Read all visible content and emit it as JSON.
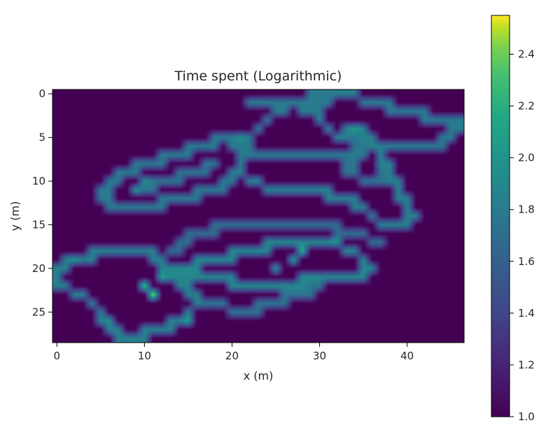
{
  "chart_data": {
    "type": "heatmap",
    "title": "Time spent (Logarithmic)",
    "xlabel": "x (m)",
    "ylabel": "y (m)",
    "xlim": [
      -0.5,
      46.5
    ],
    "ylim": [
      28.5,
      -0.5
    ],
    "grid": false,
    "colormap": "viridis",
    "colorbar": {
      "vmin": 1.0,
      "vmax": 2.55,
      "ticks": [
        1.0,
        1.2,
        1.4,
        1.6,
        1.8,
        2.0,
        2.2,
        2.4
      ],
      "tick_labels": [
        "1.0",
        "1.2",
        "1.4",
        "1.6",
        "1.8",
        "2.0",
        "2.2",
        "2.4"
      ]
    },
    "x_ticks": [
      0,
      10,
      20,
      30,
      40
    ],
    "x_tick_labels": [
      "0",
      "10",
      "20",
      "30",
      "40"
    ],
    "y_ticks": [
      0,
      5,
      10,
      15,
      20,
      25
    ],
    "y_tick_labels": [
      "0",
      "5",
      "10",
      "15",
      "20",
      "25"
    ],
    "background_value": 1.0,
    "paths": [
      {
        "value": 1.85,
        "points": [
          [
            5,
            18
          ],
          [
            2,
            19
          ],
          [
            0,
            20
          ],
          [
            0,
            22
          ],
          [
            3,
            23
          ],
          [
            5,
            25
          ],
          [
            6,
            27
          ],
          [
            8,
            28
          ],
          [
            11,
            27
          ],
          [
            14,
            26
          ],
          [
            16,
            24
          ],
          [
            15,
            22
          ],
          [
            13,
            21
          ],
          [
            12,
            19
          ],
          [
            10,
            18
          ],
          [
            7,
            18
          ],
          [
            5,
            18
          ]
        ]
      },
      {
        "value": 1.9,
        "points": [
          [
            12,
            21
          ],
          [
            14,
            20
          ],
          [
            18,
            19
          ],
          [
            22,
            18
          ],
          [
            25,
            17
          ],
          [
            28,
            17
          ],
          [
            31,
            17
          ],
          [
            34,
            18
          ],
          [
            36,
            20
          ],
          [
            34,
            21
          ],
          [
            30,
            21
          ],
          [
            26,
            22
          ],
          [
            22,
            22
          ],
          [
            18,
            21
          ],
          [
            15,
            21
          ],
          [
            12,
            21
          ]
        ]
      },
      {
        "value": 1.75,
        "points": [
          [
            15,
            23
          ],
          [
            18,
            24
          ],
          [
            21,
            25
          ],
          [
            24,
            24
          ],
          [
            27,
            23
          ],
          [
            30,
            22
          ]
        ]
      },
      {
        "value": 1.7,
        "points": [
          [
            13,
            18
          ],
          [
            16,
            16
          ],
          [
            20,
            15
          ],
          [
            25,
            15
          ],
          [
            30,
            15
          ],
          [
            34,
            16
          ],
          [
            37,
            17
          ]
        ]
      },
      {
        "value": 1.8,
        "points": [
          [
            5,
            12
          ],
          [
            7,
            9
          ],
          [
            10,
            8
          ],
          [
            13,
            7
          ],
          [
            16,
            6
          ],
          [
            19,
            5
          ],
          [
            21,
            6
          ],
          [
            21,
            9
          ],
          [
            18,
            11
          ],
          [
            14,
            12
          ],
          [
            10,
            13
          ],
          [
            7,
            13
          ],
          [
            5,
            12
          ]
        ]
      },
      {
        "value": 1.75,
        "points": [
          [
            9,
            11
          ],
          [
            12,
            10
          ],
          [
            15,
            9
          ],
          [
            18,
            8
          ]
        ]
      },
      {
        "value": 1.8,
        "points": [
          [
            21,
            6
          ],
          [
            23,
            4
          ],
          [
            25,
            2
          ],
          [
            27,
            1
          ],
          [
            30,
            0
          ],
          [
            33,
            0
          ],
          [
            36,
            1
          ],
          [
            40,
            2
          ],
          [
            44,
            3
          ],
          [
            46,
            3
          ],
          [
            45,
            5
          ],
          [
            42,
            6
          ],
          [
            39,
            6
          ],
          [
            36,
            6
          ],
          [
            33,
            7
          ],
          [
            29,
            7
          ],
          [
            26,
            7
          ],
          [
            23,
            7
          ],
          [
            21,
            6
          ]
        ]
      },
      {
        "value": 1.85,
        "points": [
          [
            30,
            3
          ],
          [
            32,
            5
          ],
          [
            34,
            4
          ],
          [
            36,
            5
          ],
          [
            37,
            7
          ],
          [
            38,
            9
          ],
          [
            39,
            11
          ],
          [
            40,
            13
          ],
          [
            41,
            14
          ],
          [
            39,
            15
          ],
          [
            37,
            15
          ],
          [
            35,
            13
          ],
          [
            33,
            12
          ],
          [
            29,
            11
          ],
          [
            25,
            11
          ],
          [
            22,
            10
          ],
          [
            21,
            9
          ]
        ]
      },
      {
        "value": 1.75,
        "points": [
          [
            34,
            4
          ],
          [
            34,
            7
          ],
          [
            33,
            9
          ],
          [
            36,
            10
          ],
          [
            38,
            9
          ]
        ]
      },
      {
        "value": 1.8,
        "points": [
          [
            22,
            1
          ],
          [
            26,
            1
          ],
          [
            29,
            2
          ],
          [
            31,
            1
          ]
        ]
      }
    ],
    "hotspots": [
      {
        "x": 11,
        "y": 23,
        "value": 2.55
      },
      {
        "x": 10,
        "y": 22,
        "value": 2.35
      },
      {
        "x": 12,
        "y": 21,
        "value": 2.1
      },
      {
        "x": 28,
        "y": 18,
        "value": 2.25
      },
      {
        "x": 27,
        "y": 19,
        "value": 2.05
      },
      {
        "x": 15,
        "y": 26,
        "value": 2.05
      },
      {
        "x": 9,
        "y": 11,
        "value": 2.0
      },
      {
        "x": 10,
        "y": 10,
        "value": 1.95
      },
      {
        "x": 34,
        "y": 4,
        "value": 2.05
      },
      {
        "x": 32,
        "y": 17,
        "value": 2.0
      },
      {
        "x": 21,
        "y": 5,
        "value": 1.95
      },
      {
        "x": 2,
        "y": 19,
        "value": 2.0
      },
      {
        "x": 6,
        "y": 26,
        "value": 1.95
      },
      {
        "x": 25,
        "y": 20,
        "value": 1.95
      },
      {
        "x": 35,
        "y": 20,
        "value": 1.9
      }
    ]
  }
}
